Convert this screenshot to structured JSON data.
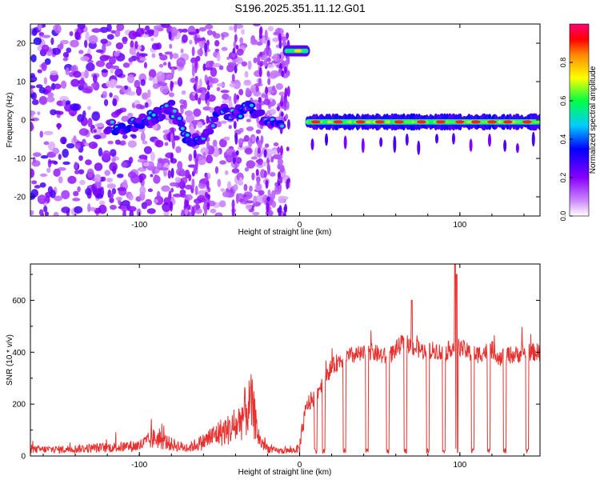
{
  "title": "S196.2025.351.11.12.G01",
  "colors": {
    "snr_line": "#e8312f",
    "axis": "#000000"
  },
  "chart_data": [
    {
      "type": "heatmap",
      "xlabel": "Height of straight line (km)",
      "ylabel": "Frequency (Hz)",
      "xlim": [
        -168,
        150
      ],
      "ylim": [
        -25,
        25
      ],
      "xticks": [
        -100,
        0,
        100
      ],
      "yticks": [
        -20,
        -10,
        0,
        10,
        20
      ],
      "colorbar": {
        "label": "Normalized spectral amplitude",
        "range": [
          0,
          1
        ],
        "ticks": [
          0.0,
          0.2,
          0.4,
          0.6,
          0.8
        ],
        "colormap": "rainbow (white-violet-blue-cyan-green-yellow-orange-red-magenta)"
      },
      "features": [
        {
          "x_range": [
            -168,
            -10
          ],
          "description": "scattered low-amplitude noise"
        },
        {
          "x": [
            -120,
            -110,
            -100,
            -90,
            -80,
            -70,
            -60,
            -50,
            -40,
            -30,
            -20,
            -10
          ],
          "freq": [
            -2,
            -2,
            -1,
            1,
            3,
            -5,
            -4,
            2,
            2,
            3,
            -1,
            -1
          ]
        },
        {
          "x_range": [
            -8,
            4
          ],
          "freq": 18,
          "peak_amplitude": 0.9
        },
        {
          "x_range": [
            5,
            150
          ],
          "freq": -0.5,
          "peak_amplitude": 0.95
        }
      ]
    },
    {
      "type": "line",
      "xlabel": "Height of straight line (km)",
      "ylabel": "SNR (10 * v/v)",
      "xlim": [
        -168,
        150
      ],
      "ylim": [
        0,
        740
      ],
      "xticks": [
        -100,
        0,
        100
      ],
      "yticks": [
        0,
        200,
        400,
        600
      ],
      "series": [
        {
          "x": [
            -168,
            -150,
            -130,
            -110,
            -100,
            -90,
            -80,
            -70,
            -60,
            -50,
            -40,
            -35,
            -30,
            -25,
            -20,
            -15,
            -10,
            -5,
            0,
            3,
            5,
            10,
            15,
            20,
            25,
            30,
            35,
            40,
            45,
            50,
            55,
            60,
            65,
            70,
            75,
            80,
            85,
            90,
            95,
            100,
            105,
            110,
            115,
            120,
            125,
            130,
            135,
            140,
            145,
            150
          ],
          "y": [
            25,
            25,
            30,
            35,
            40,
            70,
            45,
            30,
            55,
            90,
            110,
            160,
            200,
            60,
            30,
            20,
            20,
            20,
            30,
            150,
            200,
            230,
            300,
            340,
            370,
            380,
            390,
            390,
            400,
            390,
            380,
            410,
            440,
            420,
            410,
            400,
            410,
            390,
            420,
            420,
            400,
            390,
            400,
            410,
            380,
            390,
            390,
            400,
            400,
            400
          ]
        }
      ],
      "dropouts_x": [
        10,
        15,
        28,
        42,
        55,
        66,
        80,
        90,
        98,
        108,
        118,
        128,
        142
      ],
      "spikes": [
        {
          "x": 97,
          "y": 740
        },
        {
          "x": 98,
          "y": 700
        },
        {
          "x": 70,
          "y": 600
        }
      ]
    }
  ]
}
